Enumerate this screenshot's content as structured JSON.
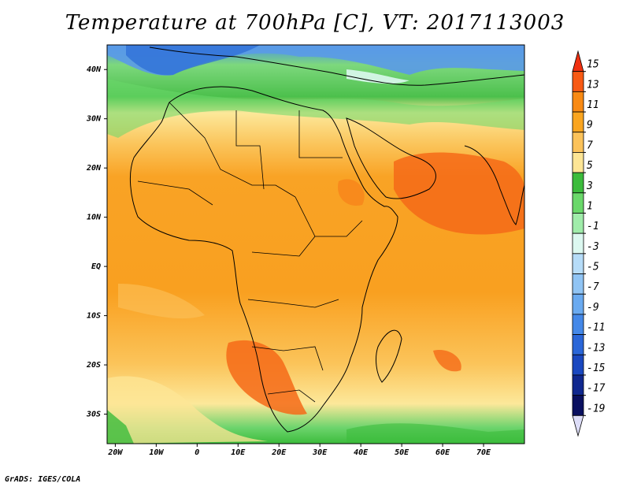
{
  "title": "Temperature at 700hPa [C], VT: 2017113003",
  "credit": "GrADS: IGES/COLA",
  "map": {
    "lon_range": [
      -22,
      80
    ],
    "lat_range": [
      -36,
      45
    ],
    "lat_ticks": [
      {
        "value": 40,
        "label": "40N"
      },
      {
        "value": 30,
        "label": "30N"
      },
      {
        "value": 20,
        "label": "20N"
      },
      {
        "value": 10,
        "label": "10N"
      },
      {
        "value": 0,
        "label": "EQ"
      },
      {
        "value": -10,
        "label": "10S"
      },
      {
        "value": -20,
        "label": "20S"
      },
      {
        "value": -30,
        "label": "30S"
      }
    ],
    "lon_ticks": [
      {
        "value": -20,
        "label": "20W"
      },
      {
        "value": -10,
        "label": "10W"
      },
      {
        "value": 0,
        "label": "0"
      },
      {
        "value": 10,
        "label": "10E"
      },
      {
        "value": 20,
        "label": "20E"
      },
      {
        "value": 30,
        "label": "30E"
      },
      {
        "value": 40,
        "label": "40E"
      },
      {
        "value": 50,
        "label": "50E"
      },
      {
        "value": 60,
        "label": "60E"
      },
      {
        "value": 70,
        "label": "70E"
      }
    ]
  },
  "colorbar": {
    "levels": [
      "15",
      "13",
      "11",
      "9",
      "7",
      "5",
      "3",
      "1",
      "-1",
      "-3",
      "-5",
      "-7",
      "-9",
      "-11",
      "-13",
      "-15",
      "-17",
      "-19"
    ],
    "colors": [
      "#f03010",
      "#f85a14",
      "#f98a14",
      "#faa520",
      "#fbc25a",
      "#fde595",
      "#3cbc3c",
      "#6ad86a",
      "#a0ecaa",
      "#dcf8f0",
      "#b6dcf8",
      "#90c4f4",
      "#6aaaf0",
      "#4488e8",
      "#2a66d8",
      "#1a48c0",
      "#10288f",
      "#0a1060",
      "#ddddf8"
    ]
  }
}
